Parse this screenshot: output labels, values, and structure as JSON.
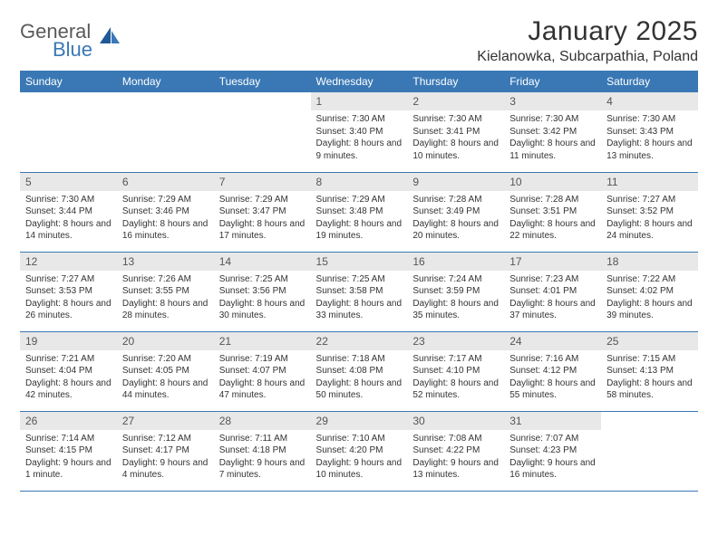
{
  "brand": {
    "top": "General",
    "bottom": "Blue"
  },
  "title": "January 2025",
  "location": "Kielanowka, Subcarpathia, Poland",
  "colors": {
    "header_bg": "#3a78b5",
    "header_fg": "#ffffff",
    "daynum_bg": "#e8e8e8",
    "rule": "#3a78b5",
    "text": "#333333",
    "logo_gray": "#5a5a5a",
    "logo_blue": "#3a78b5"
  },
  "weekdays": [
    "Sunday",
    "Monday",
    "Tuesday",
    "Wednesday",
    "Thursday",
    "Friday",
    "Saturday"
  ],
  "weeks": [
    [
      null,
      null,
      null,
      {
        "n": "1",
        "sr": "7:30 AM",
        "ss": "3:40 PM",
        "dl": "8 hours and 9 minutes."
      },
      {
        "n": "2",
        "sr": "7:30 AM",
        "ss": "3:41 PM",
        "dl": "8 hours and 10 minutes."
      },
      {
        "n": "3",
        "sr": "7:30 AM",
        "ss": "3:42 PM",
        "dl": "8 hours and 11 minutes."
      },
      {
        "n": "4",
        "sr": "7:30 AM",
        "ss": "3:43 PM",
        "dl": "8 hours and 13 minutes."
      }
    ],
    [
      {
        "n": "5",
        "sr": "7:30 AM",
        "ss": "3:44 PM",
        "dl": "8 hours and 14 minutes."
      },
      {
        "n": "6",
        "sr": "7:29 AM",
        "ss": "3:46 PM",
        "dl": "8 hours and 16 minutes."
      },
      {
        "n": "7",
        "sr": "7:29 AM",
        "ss": "3:47 PM",
        "dl": "8 hours and 17 minutes."
      },
      {
        "n": "8",
        "sr": "7:29 AM",
        "ss": "3:48 PM",
        "dl": "8 hours and 19 minutes."
      },
      {
        "n": "9",
        "sr": "7:28 AM",
        "ss": "3:49 PM",
        "dl": "8 hours and 20 minutes."
      },
      {
        "n": "10",
        "sr": "7:28 AM",
        "ss": "3:51 PM",
        "dl": "8 hours and 22 minutes."
      },
      {
        "n": "11",
        "sr": "7:27 AM",
        "ss": "3:52 PM",
        "dl": "8 hours and 24 minutes."
      }
    ],
    [
      {
        "n": "12",
        "sr": "7:27 AM",
        "ss": "3:53 PM",
        "dl": "8 hours and 26 minutes."
      },
      {
        "n": "13",
        "sr": "7:26 AM",
        "ss": "3:55 PM",
        "dl": "8 hours and 28 minutes."
      },
      {
        "n": "14",
        "sr": "7:25 AM",
        "ss": "3:56 PM",
        "dl": "8 hours and 30 minutes."
      },
      {
        "n": "15",
        "sr": "7:25 AM",
        "ss": "3:58 PM",
        "dl": "8 hours and 33 minutes."
      },
      {
        "n": "16",
        "sr": "7:24 AM",
        "ss": "3:59 PM",
        "dl": "8 hours and 35 minutes."
      },
      {
        "n": "17",
        "sr": "7:23 AM",
        "ss": "4:01 PM",
        "dl": "8 hours and 37 minutes."
      },
      {
        "n": "18",
        "sr": "7:22 AM",
        "ss": "4:02 PM",
        "dl": "8 hours and 39 minutes."
      }
    ],
    [
      {
        "n": "19",
        "sr": "7:21 AM",
        "ss": "4:04 PM",
        "dl": "8 hours and 42 minutes."
      },
      {
        "n": "20",
        "sr": "7:20 AM",
        "ss": "4:05 PM",
        "dl": "8 hours and 44 minutes."
      },
      {
        "n": "21",
        "sr": "7:19 AM",
        "ss": "4:07 PM",
        "dl": "8 hours and 47 minutes."
      },
      {
        "n": "22",
        "sr": "7:18 AM",
        "ss": "4:08 PM",
        "dl": "8 hours and 50 minutes."
      },
      {
        "n": "23",
        "sr": "7:17 AM",
        "ss": "4:10 PM",
        "dl": "8 hours and 52 minutes."
      },
      {
        "n": "24",
        "sr": "7:16 AM",
        "ss": "4:12 PM",
        "dl": "8 hours and 55 minutes."
      },
      {
        "n": "25",
        "sr": "7:15 AM",
        "ss": "4:13 PM",
        "dl": "8 hours and 58 minutes."
      }
    ],
    [
      {
        "n": "26",
        "sr": "7:14 AM",
        "ss": "4:15 PM",
        "dl": "9 hours and 1 minute."
      },
      {
        "n": "27",
        "sr": "7:12 AM",
        "ss": "4:17 PM",
        "dl": "9 hours and 4 minutes."
      },
      {
        "n": "28",
        "sr": "7:11 AM",
        "ss": "4:18 PM",
        "dl": "9 hours and 7 minutes."
      },
      {
        "n": "29",
        "sr": "7:10 AM",
        "ss": "4:20 PM",
        "dl": "9 hours and 10 minutes."
      },
      {
        "n": "30",
        "sr": "7:08 AM",
        "ss": "4:22 PM",
        "dl": "9 hours and 13 minutes."
      },
      {
        "n": "31",
        "sr": "7:07 AM",
        "ss": "4:23 PM",
        "dl": "9 hours and 16 minutes."
      },
      null
    ]
  ],
  "labels": {
    "sunrise": "Sunrise:",
    "sunset": "Sunset:",
    "daylight": "Daylight:"
  }
}
